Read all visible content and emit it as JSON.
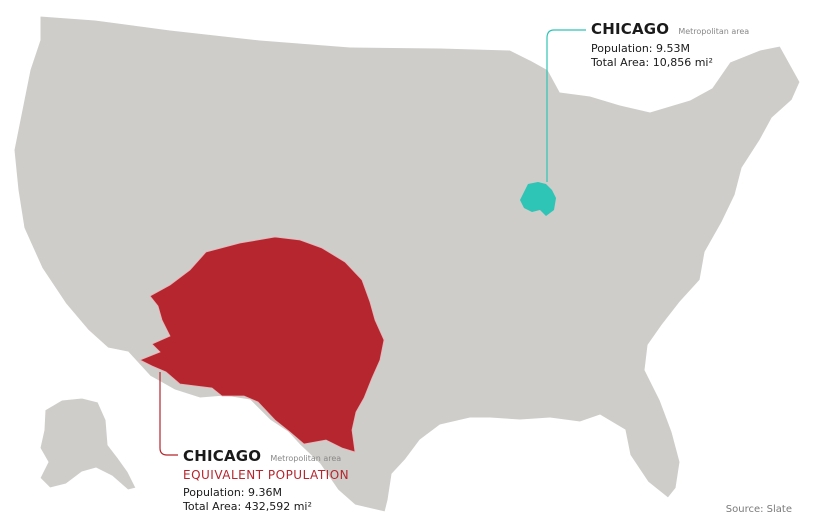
{
  "colors": {
    "land": "#cfcdc9",
    "border": "#ffffff",
    "equivalent": "#b5262f",
    "chicago": "#2ec4b6",
    "leader_red": "#b5262f",
    "leader_teal": "#2ec4b6"
  },
  "top_annotation": {
    "title": "CHICAGO",
    "subtitle": "Metropolitan area",
    "population": "Population: 9.53M",
    "area": "Total Area: 10,856 mi²"
  },
  "bottom_annotation": {
    "title": "CHICAGO",
    "subtitle": "Metropolitan area",
    "tagline": "EQUIVALENT POPULATION",
    "population": "Population: 9.36M",
    "area": "Total Area: 432,592 mi²"
  },
  "source": "Source: Slate"
}
